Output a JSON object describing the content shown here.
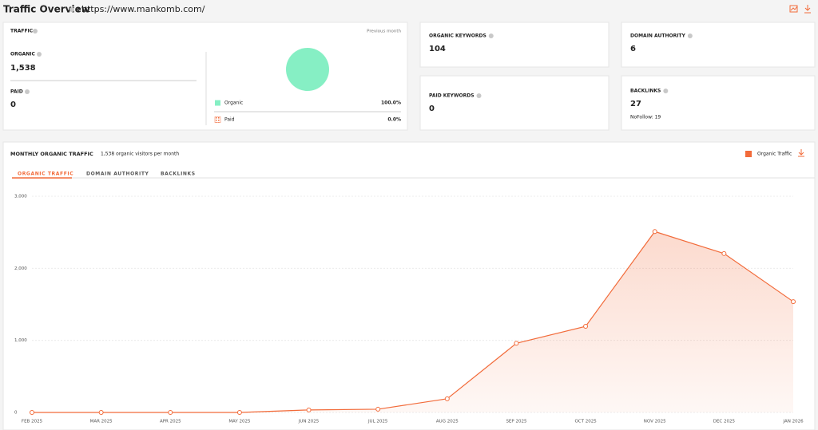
{
  "header": {
    "title": "Traffic Overview",
    "separator": ":",
    "url": "https://www.mankomb.com/"
  },
  "traffic": {
    "title": "TRAFFIC",
    "period": "Previous month",
    "organic": {
      "label": "ORGANIC",
      "value": "1,538"
    },
    "paid": {
      "label": "PAID",
      "value": "0"
    }
  },
  "cards": [
    {
      "label": "ORGANIC KEYWORDS",
      "value": "104"
    },
    {
      "label": "DOMAIN AUTHORITY",
      "value": "6"
    },
    {
      "label": "PAID KEYWORDS",
      "value": "0"
    },
    {
      "label": "BACKLINKS",
      "value": "27",
      "note": "NoFollow: 19"
    }
  ],
  "tabs": [
    "ORGANIC TRAFFIC",
    "DOMAIN AUTHORITY",
    "BACKLINKS"
  ],
  "chart_data": [
    {
      "type": "pie",
      "categories": [
        "Organic",
        "Paid"
      ],
      "values": [
        100,
        0
      ],
      "value_labels": [
        "100.0%",
        "0.0%"
      ],
      "colors": [
        "#86efc4",
        "#f26b3a"
      ]
    },
    {
      "type": "line",
      "title": "MONTHLY ORGANIC TRAFFIC",
      "subtitle": "1,538 organic visitors per month",
      "categories": [
        "FEB 2025",
        "MAR 2025",
        "APR 2025",
        "MAY 2025",
        "JUN 2025",
        "JUL 2025",
        "AUG 2025",
        "SEP 2025",
        "OCT 2025",
        "NOV 2025",
        "DEC 2025",
        "JAN 2026"
      ],
      "series": [
        {
          "name": "Organic Traffic",
          "color": "#f26b3a",
          "values": [
            0,
            0,
            0,
            0,
            35,
            45,
            190,
            960,
            1195,
            2510,
            2205,
            1538
          ]
        }
      ],
      "ylim": [
        0,
        3000
      ],
      "yticks": [
        0,
        {
          "value": 1000,
          "label": "1,000"
        },
        {
          "value": 2000,
          "label": "2,000"
        },
        {
          "value": 3000,
          "label": "3,000"
        }
      ],
      "grid": true,
      "legend": "top-right"
    }
  ]
}
